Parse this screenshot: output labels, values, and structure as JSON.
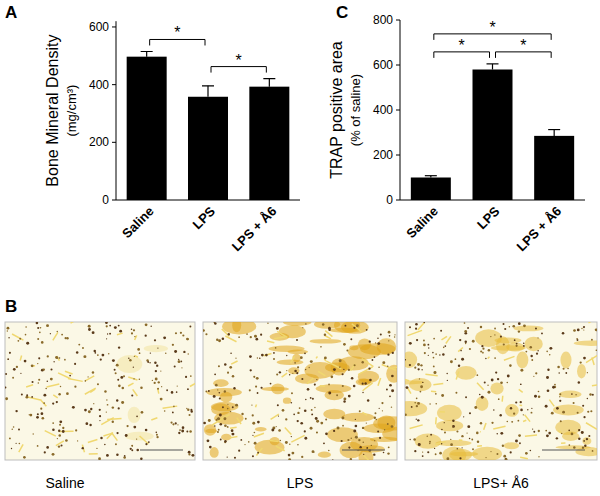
{
  "chart_data": [
    {
      "type": "bar",
      "title": "A",
      "y_label": [
        "Bone Mineral Density",
        "(mg/cm³)"
      ],
      "categories": [
        "Saline",
        "LPS",
        "LPS + Å6"
      ],
      "values": [
        497,
        358,
        393
      ],
      "errors": [
        18,
        38,
        28
      ],
      "color": "#000000",
      "ylim": [
        0,
        620
      ],
      "yticks": [
        0,
        200,
        400,
        600
      ],
      "annotations": [
        {
          "from": "Saline",
          "to": "LPS",
          "label": "*"
        },
        {
          "from": "LPS",
          "to": "LPS + Å6",
          "label": "*"
        }
      ]
    },
    {
      "type": "bar",
      "title": "C",
      "y_label": [
        "TRAP positive area",
        "(% of saline)"
      ],
      "categories": [
        "Saline",
        "LPS",
        "LPS + Å6"
      ],
      "values": [
        100,
        580,
        285
      ],
      "errors": [
        8,
        25,
        28
      ],
      "color": "#000000",
      "ylim": [
        0,
        800
      ],
      "yticks": [
        0,
        200,
        400,
        600,
        800
      ],
      "annotations": [
        {
          "from": "Saline",
          "to": "LPS",
          "label": "*"
        },
        {
          "from": "LPS",
          "to": "LPS + Å6",
          "label": "*"
        },
        {
          "from": "Saline",
          "to": "LPS + Å6",
          "label": "*"
        }
      ]
    }
  ],
  "micrographs": {
    "title": "B",
    "labels": [
      "Saline",
      "LPS",
      "LPS+ Å6"
    ]
  }
}
